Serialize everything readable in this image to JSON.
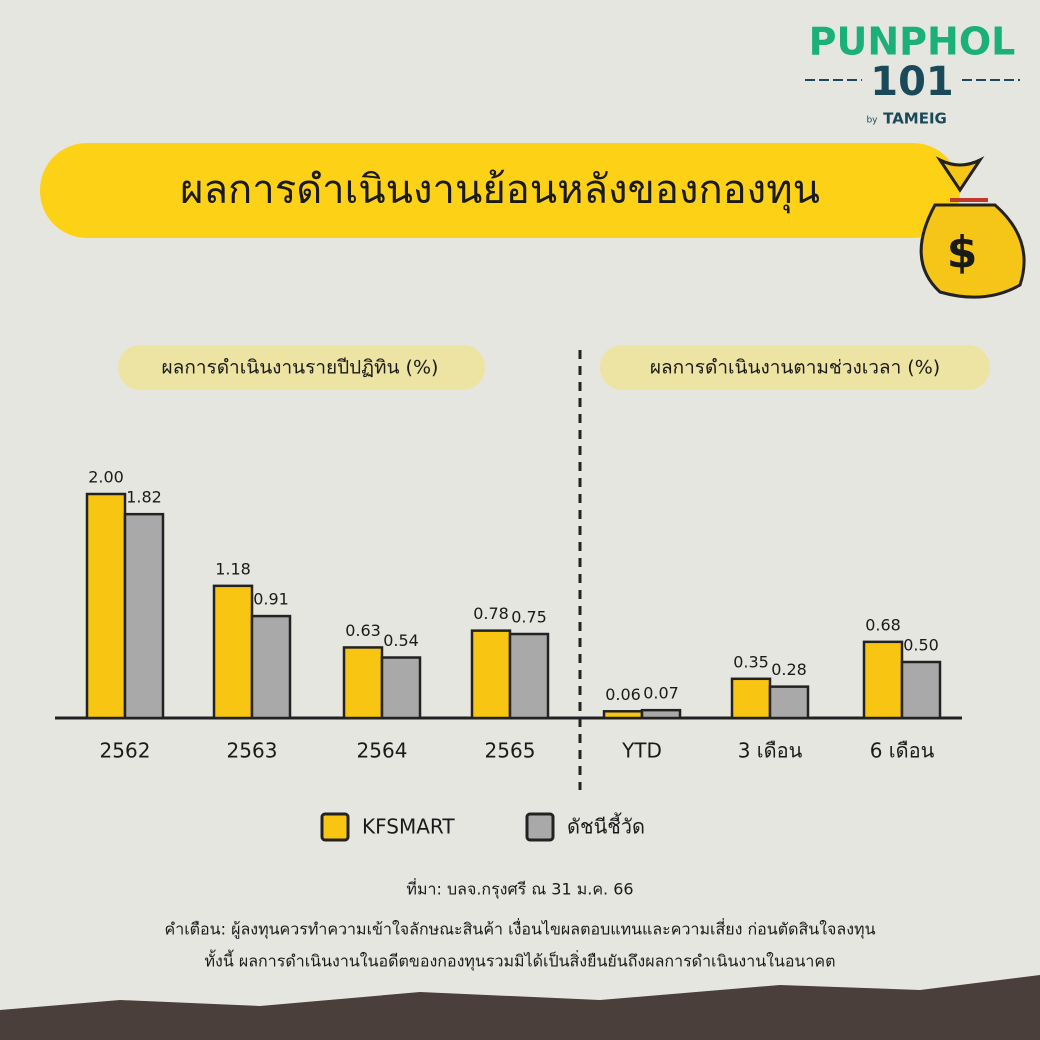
{
  "header": {
    "brand": "PUNPHOL",
    "number": "101",
    "by": "by",
    "company": "TAMEIG"
  },
  "chart_data": {
    "type": "bar",
    "title": "ผลการดำเนินงานย้อนหลังของกองทุน",
    "subtitles": [
      "ผลการดำเนินงานรายปีปฏิทิน (%)",
      "ผลการดำเนินงานตามช่วงเวลา (%)"
    ],
    "categories": [
      "2562",
      "2563",
      "2564",
      "2565",
      "YTD",
      "3 เดือน",
      "6 เดือน"
    ],
    "series": [
      {
        "name": "KFSMART",
        "color": "#f9c513",
        "values": [
          2.0,
          1.18,
          0.63,
          0.78,
          0.06,
          0.35,
          0.68
        ],
        "value_labels": [
          "2.00",
          "1.18",
          "0.63",
          "0.78",
          "0.06",
          "0.35",
          "0.68"
        ]
      },
      {
        "name": "ดัชนีชี้วัด",
        "color": "#a9a9a9",
        "values": [
          1.82,
          0.91,
          0.54,
          0.75,
          0.07,
          0.28,
          0.5
        ],
        "value_labels": [
          "1.82",
          "0.91",
          "0.54",
          "0.75",
          "0.07",
          "0.28",
          "0.50"
        ]
      }
    ]
  },
  "footer": {
    "source": "ที่มา: บลจ.กรุงศรี ณ 31 ม.ค. 66",
    "warning": "คำเตือน: ผู้ลงทุนควรทำความเข้าใจลักษณะสินค้า เงื่อนไขผลตอบแทนและความเสี่ยง ก่อนตัดสินใจลงทุน",
    "disclaimer": "ทั้งนี้ ผลการดำเนินงานในอดีตของกองทุนรวมมิได้เป็นสิ่งยืนยันถึงผลการดำเนินงานในอนาคต"
  }
}
